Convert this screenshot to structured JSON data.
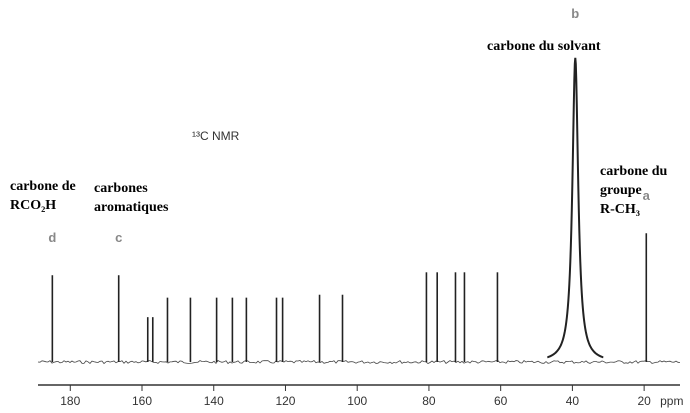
{
  "chart_data": {
    "type": "spectrum",
    "title": "¹³C NMR",
    "x": [
      185,
      166.5,
      158.4,
      157,
      152.9,
      146.5,
      139.2,
      134.8,
      130.9,
      122.5,
      120.8,
      110.5,
      104.1,
      80.7,
      77.7,
      72.6,
      70.1,
      60.9,
      39.2,
      19.4
    ],
    "values": [
      89,
      89,
      46,
      46,
      66,
      66,
      66,
      66,
      66,
      66,
      66,
      69,
      69,
      92,
      92,
      92,
      92,
      92,
      312,
      132
    ],
    "color": "#222",
    "xlim": [
      189,
      10
    ],
    "ylim": [
      0,
      320
    ],
    "xticks": [
      180,
      160,
      140,
      120,
      100,
      80,
      60,
      40,
      20
    ],
    "xlabel": "ppm",
    "annotations": [
      {
        "letter": "d",
        "x": 185,
        "lines": [
          "carbone de",
          "RCO₂H"
        ]
      },
      {
        "letter": "c",
        "x": 166.5,
        "lines": [
          "carbones",
          "aromatiques"
        ]
      },
      {
        "letter": "b",
        "x": 39.2,
        "lines": [
          "carbone du solvant"
        ]
      },
      {
        "letter": "a",
        "x": 19.4,
        "lines": [
          "carbone du",
          "groupe",
          "R-CH₃"
        ]
      }
    ]
  }
}
